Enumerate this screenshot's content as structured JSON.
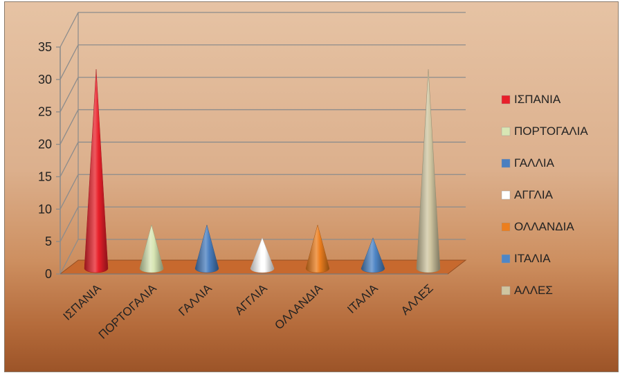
{
  "chart_data": {
    "type": "bar",
    "style": "3d-cone",
    "categories": [
      "ΙΣΠΑΝΙΑ",
      "ΠΟΡΤΟΓΑΛΙΑ",
      "ΓΑΛΛΙΑ",
      "ΑΓΓΛΙΑ",
      "ΟΛΛΑΝΔΙΑ",
      "ΙΤΑΛΙΑ",
      "ΑΛΛΕΣ"
    ],
    "values": [
      32,
      8,
      8,
      6,
      8,
      6,
      32
    ],
    "colors": [
      "#e8202a",
      "#d8e6b4",
      "#4a7fc0",
      "#ffffff",
      "#ec7e1e",
      "#4f86c6",
      "#cfc5a0"
    ],
    "ylim": [
      0,
      35
    ],
    "y_ticks": [
      0,
      5,
      10,
      15,
      20,
      25,
      30,
      35
    ],
    "grid": true,
    "legend_position": "right",
    "legend": [
      "ΙΣΠΑΝΙΑ",
      "ΠΟΡΤΟΓΑΛΙΑ",
      "ΓΑΛΛΙΑ",
      "ΑΓΓΛΙΑ",
      "ΟΛΛΑΝΔΙΑ",
      "ΙΤΑΛΙΑ",
      "ΑΛΛΕΣ"
    ],
    "floor_color": "#c7692e"
  }
}
